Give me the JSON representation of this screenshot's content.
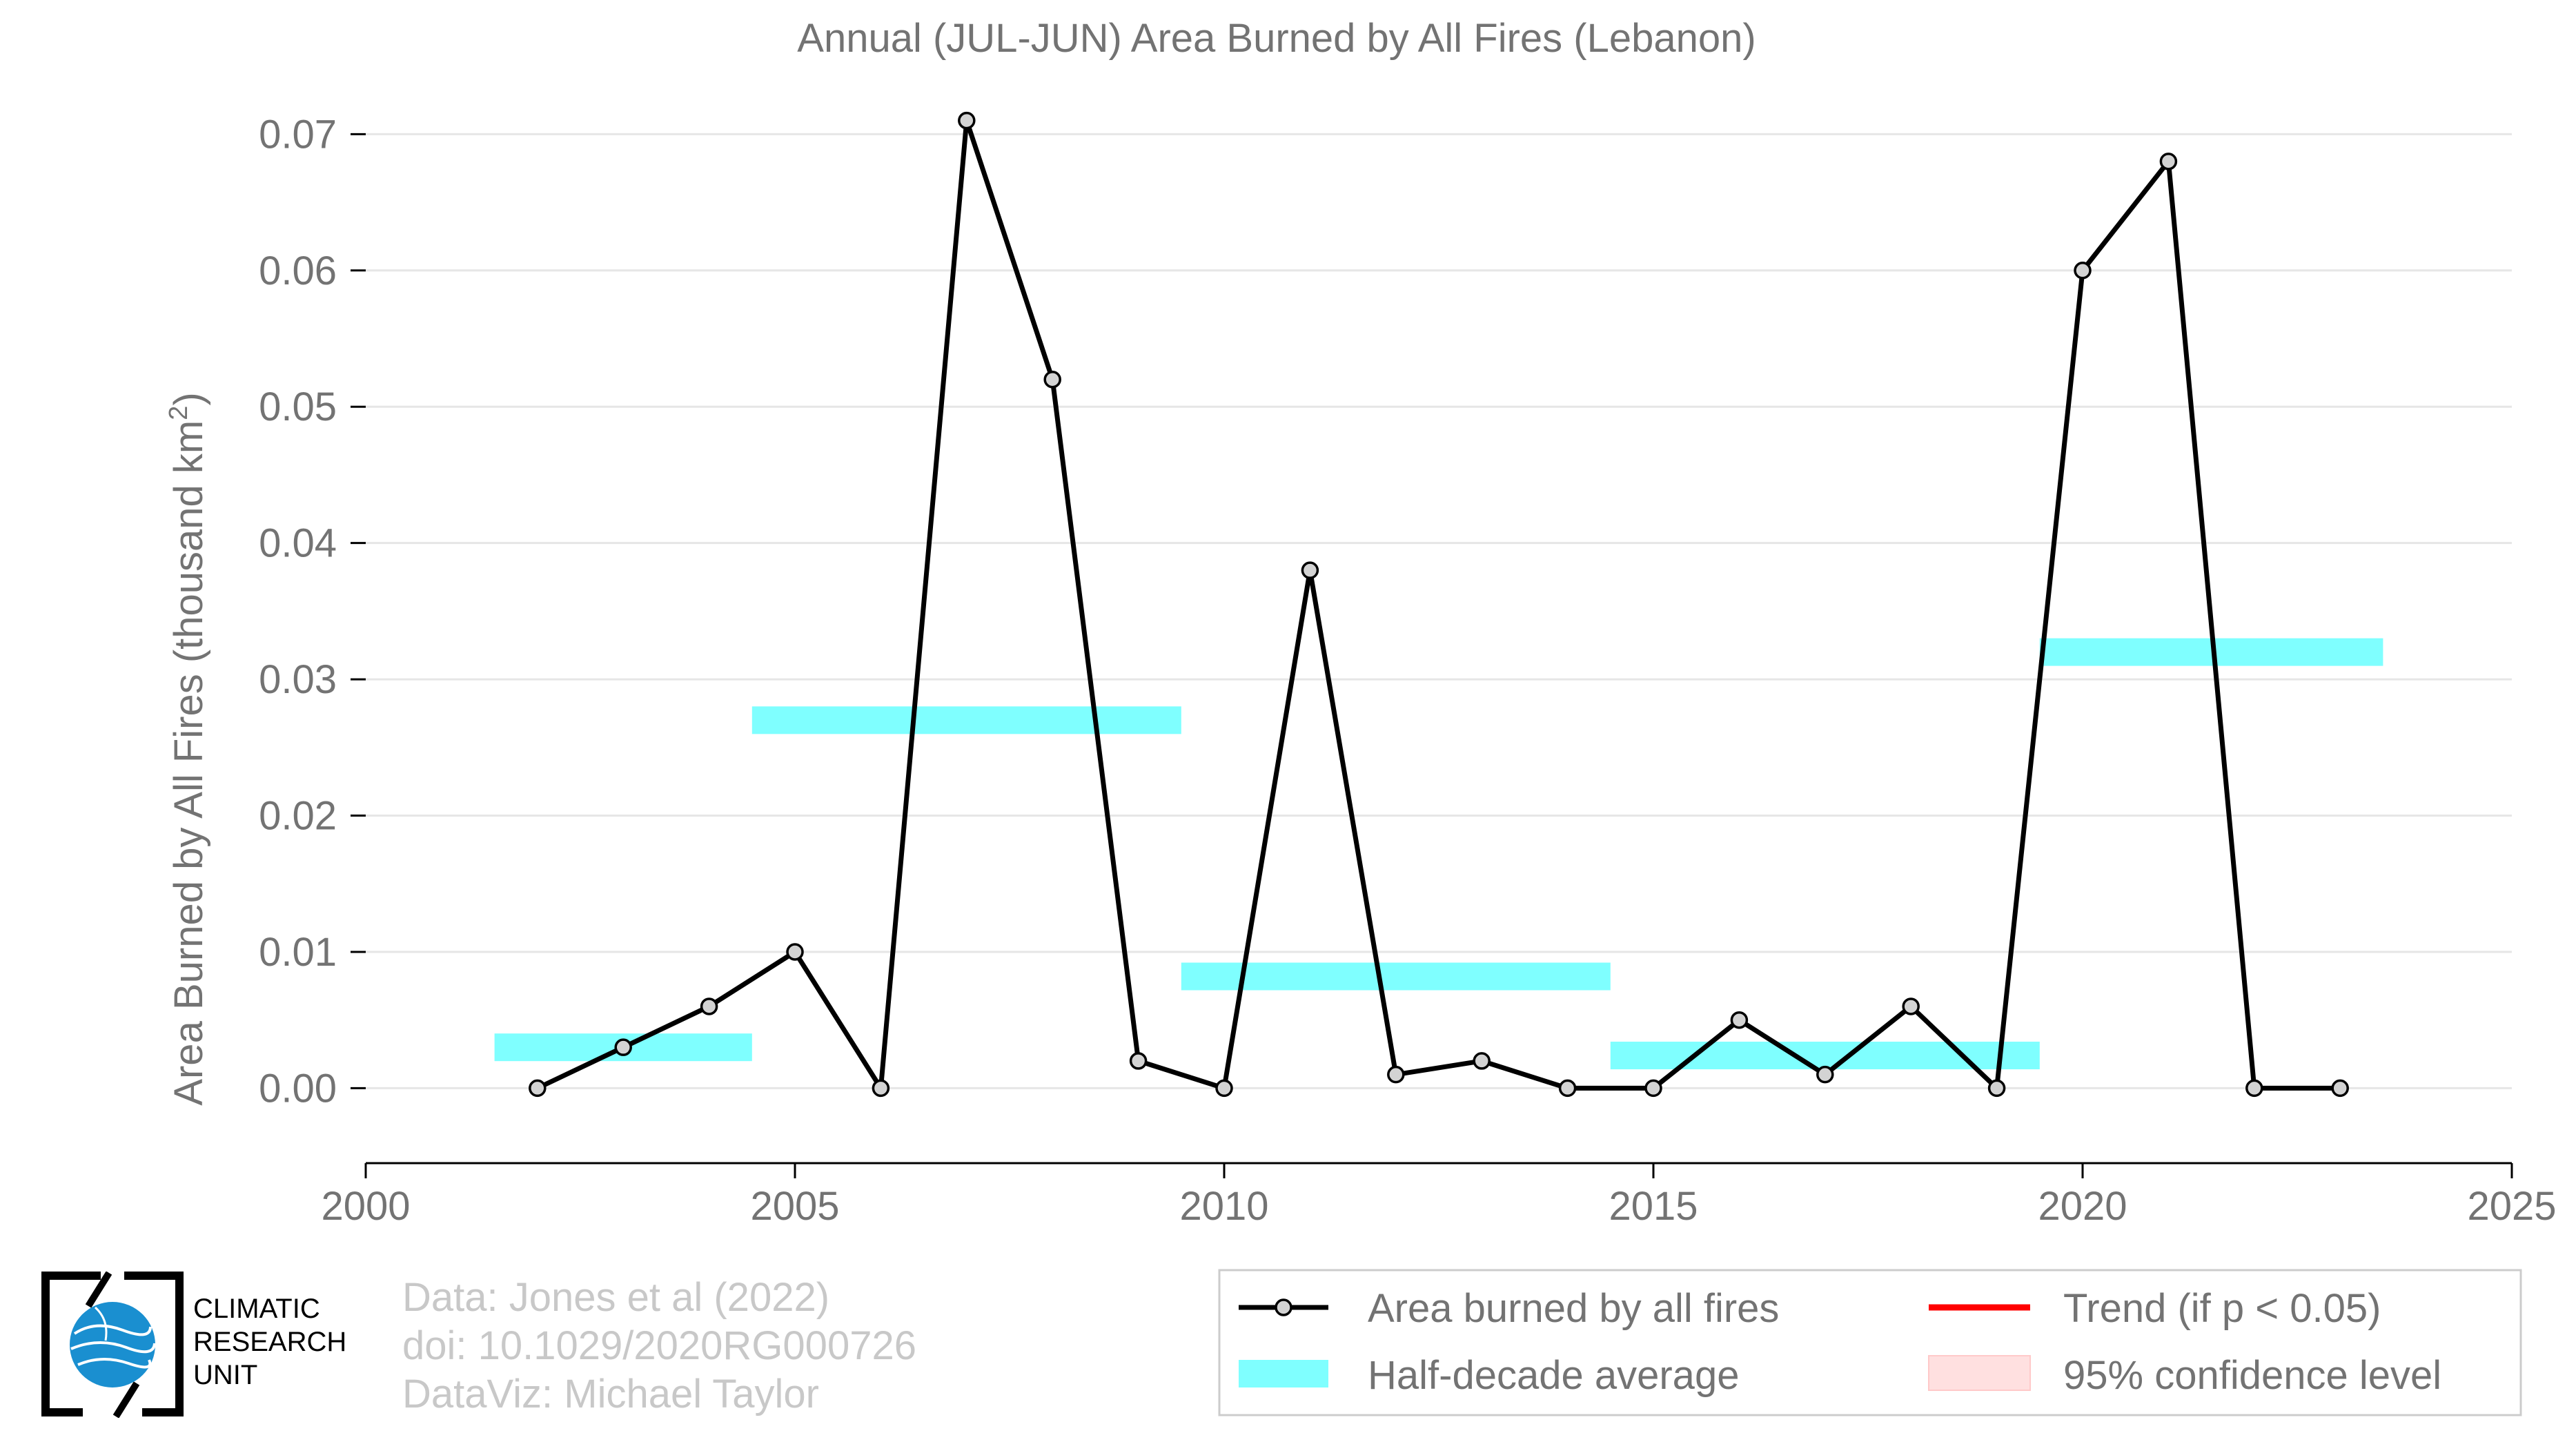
{
  "chart_data": {
    "type": "line",
    "title": "Annual (JUL-JUN) Area Burned by All Fires (Lebanon)",
    "ylabel": "Area Burned by All Fires (thousand km",
    "ylabel_sup": "2",
    "ylabel_end": ")",
    "xlim": [
      2000,
      2025
    ],
    "ylim": [
      -0.0055,
      0.0725
    ],
    "xticks": [
      2000,
      2005,
      2010,
      2015,
      2020,
      2025
    ],
    "yticks": [
      0.0,
      0.01,
      0.02,
      0.03,
      0.04,
      0.05,
      0.06,
      0.07
    ],
    "ytick_labels": [
      "0.00",
      "0.01",
      "0.02",
      "0.03",
      "0.04",
      "0.05",
      "0.06",
      "0.07"
    ],
    "grid": "horizontal",
    "series": [
      {
        "name": "Area burned by all fires",
        "x": [
          2002,
          2003,
          2004,
          2005,
          2006,
          2007,
          2008,
          2009,
          2010,
          2011,
          2012,
          2013,
          2014,
          2015,
          2016,
          2017,
          2018,
          2019,
          2020,
          2021,
          2022,
          2023
        ],
        "y": [
          0.0,
          0.003,
          0.006,
          0.01,
          0.0,
          0.071,
          0.052,
          0.002,
          0.0,
          0.038,
          0.001,
          0.002,
          0.0,
          0.0,
          0.005,
          0.001,
          0.006,
          0.0,
          0.06,
          0.068,
          0.0,
          0.0
        ]
      }
    ],
    "half_decade_average": {
      "name": "Half-decade average",
      "segments": [
        {
          "x0": 2001.5,
          "x1": 2004.5,
          "y": 0.003
        },
        {
          "x0": 2004.5,
          "x1": 2009.5,
          "y": 0.027
        },
        {
          "x0": 2009.5,
          "x1": 2014.5,
          "y": 0.0082
        },
        {
          "x0": 2014.5,
          "x1": 2019.5,
          "y": 0.0024
        },
        {
          "x0": 2019.5,
          "x1": 2023.5,
          "y": 0.032
        }
      ]
    },
    "legend": {
      "placement": "bottom-right",
      "entries": [
        {
          "label": "Area burned by all fires",
          "kind": "line-marker",
          "color": "#000000"
        },
        {
          "label": "Trend (if p < 0.05)",
          "kind": "line",
          "color": "#ff0000"
        },
        {
          "label": "Half-decade average",
          "kind": "band",
          "color": "#7fffff"
        },
        {
          "label": "95% confidence level",
          "kind": "patch",
          "color": "#ffe0e0"
        }
      ]
    },
    "colors": {
      "line": "#000000",
      "marker_fill": "#d3d3d3",
      "band": "#7fffff",
      "text": "#737373",
      "grid": "#e6e6e6"
    }
  },
  "credits": {
    "line1": "Data: Jones et al (2022)",
    "line2": "doi: 10.1029/2020RG000726",
    "line3": "DataViz: Michael Taylor"
  },
  "organization": {
    "line1": "CLIMATIC",
    "line2": "RESEARCH",
    "line3": "UNIT"
  }
}
